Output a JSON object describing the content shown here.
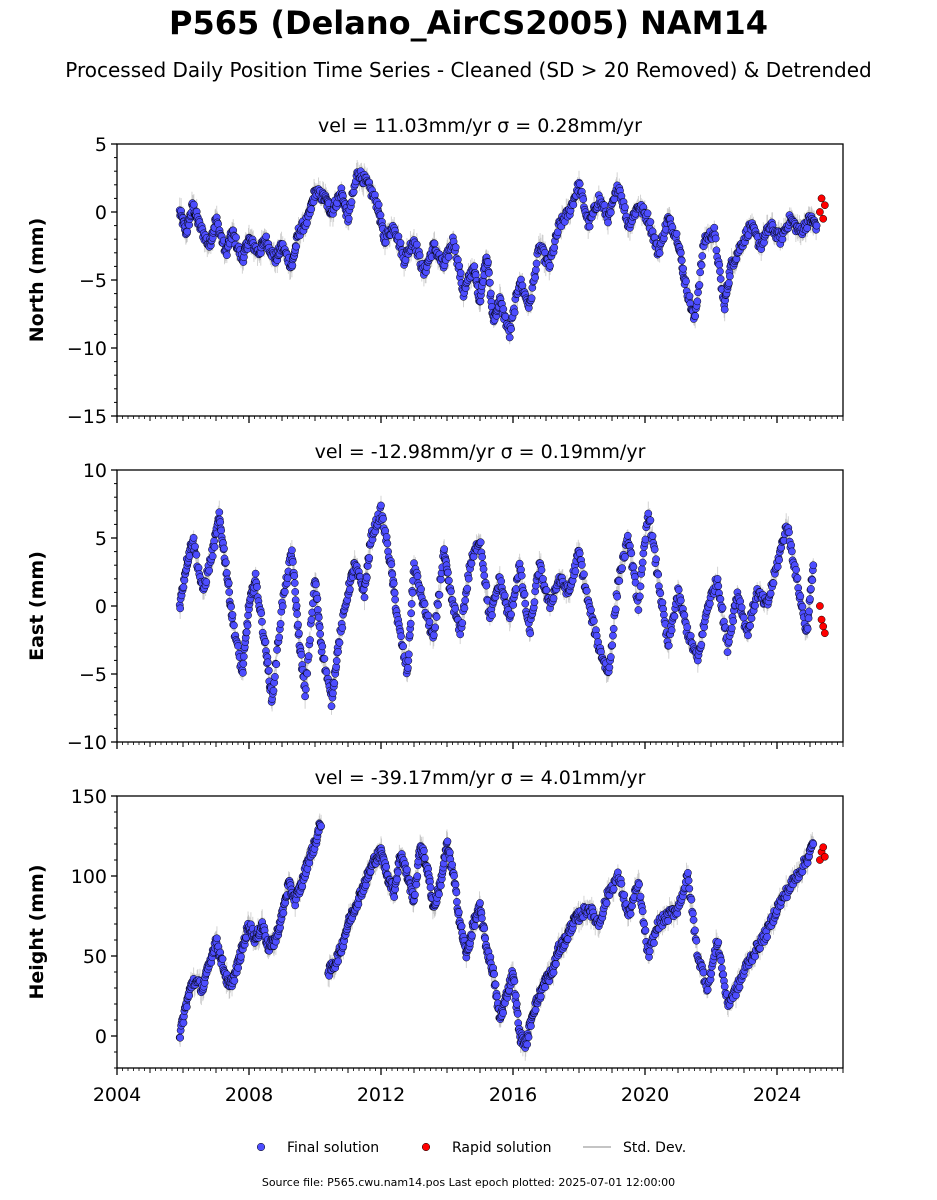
{
  "title": "P565 (Delano_AirCS2005) NAM14",
  "subtitle": "Processed Daily Position Time Series - Cleaned (SD > 20 Removed) & Detrended",
  "source_note": "Source file: P565.cwu.nam14.pos  Last epoch plotted: 2025-07-01 12:00:00",
  "colors": {
    "final": "#4d4dff",
    "rapid": "#ff0000",
    "marker_edge": "#000000",
    "std_dev": "#b0b0b0",
    "axes": "#000000"
  },
  "legend": {
    "placement": "bottom-center",
    "items": [
      {
        "label": "Final solution",
        "color": "#4d4dff",
        "kind": "marker"
      },
      {
        "label": "Rapid solution",
        "color": "#ff0000",
        "kind": "marker"
      },
      {
        "label": "Std. Dev.",
        "color": "#b0b0b0",
        "kind": "line"
      }
    ]
  },
  "chart_data": [
    {
      "type": "scatter",
      "title": "vel = 11.03mm/yr   σ = 0.28mm/yr",
      "ylabel": "North (mm)",
      "xlabel": "",
      "xlim": [
        2004,
        2026
      ],
      "ylim": [
        -15,
        5
      ],
      "yticks": [
        5,
        0,
        -5,
        -10,
        -15
      ],
      "ytick_labels": [
        "5",
        "0",
        "−5",
        "−10",
        "−15"
      ],
      "xticks": [
        2004,
        2008,
        2012,
        2016,
        2020,
        2024
      ],
      "show_xtick_labels": false,
      "grid": false,
      "series": [
        {
          "name": "Final solution",
          "x": [
            2005.9,
            2006.1,
            2006.3,
            2006.5,
            2006.8,
            2007.0,
            2007.3,
            2007.5,
            2007.8,
            2008.0,
            2008.3,
            2008.5,
            2008.8,
            2009.0,
            2009.3,
            2009.5,
            2009.8,
            2010.0,
            2010.3,
            2010.5,
            2010.8,
            2011.0,
            2011.3,
            2011.6,
            2011.9,
            2012.1,
            2012.4,
            2012.7,
            2013.0,
            2013.3,
            2013.6,
            2013.9,
            2014.2,
            2014.5,
            2014.8,
            2015.0,
            2015.2,
            2015.4,
            2015.6,
            2015.9,
            2016.2,
            2016.5,
            2016.8,
            2017.1,
            2017.4,
            2017.7,
            2018.0,
            2018.3,
            2018.6,
            2018.9,
            2019.2,
            2019.5,
            2019.8,
            2020.1,
            2020.4,
            2020.7,
            2021.0,
            2021.2,
            2021.5,
            2021.8,
            2022.1,
            2022.4,
            2022.6,
            2022.9,
            2023.2,
            2023.5,
            2023.8,
            2024.1,
            2024.4,
            2024.7,
            2025.0,
            2025.2
          ],
          "y": [
            0.0,
            -1.5,
            0.5,
            -1.0,
            -2.5,
            -0.5,
            -3.0,
            -1.5,
            -3.5,
            -2.0,
            -3.0,
            -2.0,
            -3.5,
            -2.5,
            -4.0,
            -1.5,
            -0.5,
            1.5,
            1.0,
            0.0,
            1.5,
            -0.5,
            3.0,
            2.0,
            0.5,
            -2.0,
            -1.0,
            -3.5,
            -2.0,
            -4.5,
            -2.5,
            -4.0,
            -2.0,
            -6.0,
            -4.0,
            -6.5,
            -3.0,
            -8.0,
            -6.5,
            -9.0,
            -5.0,
            -7.0,
            -2.5,
            -4.0,
            -1.0,
            0.0,
            2.0,
            -1.0,
            1.0,
            -0.5,
            2.0,
            -1.0,
            0.5,
            -0.5,
            -3.0,
            -0.5,
            -2.0,
            -5.0,
            -8.0,
            -2.0,
            -1.5,
            -7.0,
            -4.0,
            -2.5,
            -1.0,
            -2.5,
            -1.0,
            -2.0,
            -0.5,
            -1.5,
            -0.5,
            -1.0
          ]
        },
        {
          "name": "Rapid solution",
          "x": [
            2025.3,
            2025.35,
            2025.4,
            2025.45
          ],
          "y": [
            0.0,
            1.0,
            -0.5,
            0.5
          ]
        }
      ]
    },
    {
      "type": "scatter",
      "title": "vel = -12.98mm/yr   σ = 0.19mm/yr",
      "ylabel": "East (mm)",
      "xlabel": "",
      "xlim": [
        2004,
        2026
      ],
      "ylim": [
        -10,
        10
      ],
      "yticks": [
        10,
        5,
        0,
        -5,
        -10
      ],
      "ytick_labels": [
        "10",
        "5",
        "0",
        "−5",
        "−10"
      ],
      "xticks": [
        2004,
        2008,
        2012,
        2016,
        2020,
        2024
      ],
      "show_xtick_labels": false,
      "grid": false,
      "series": [
        {
          "name": "Final solution",
          "x": [
            2005.9,
            2006.1,
            2006.3,
            2006.6,
            2006.9,
            2007.1,
            2007.3,
            2007.5,
            2007.8,
            2008.0,
            2008.2,
            2008.5,
            2008.7,
            2009.0,
            2009.3,
            2009.5,
            2009.7,
            2010.0,
            2010.2,
            2010.5,
            2010.7,
            2011.0,
            2011.2,
            2011.5,
            2011.7,
            2012.0,
            2012.3,
            2012.5,
            2012.8,
            2013.0,
            2013.3,
            2013.6,
            2013.9,
            2014.1,
            2014.4,
            2014.7,
            2015.0,
            2015.3,
            2015.6,
            2015.9,
            2016.2,
            2016.5,
            2016.8,
            2017.1,
            2017.4,
            2017.7,
            2018.0,
            2018.3,
            2018.6,
            2018.9,
            2019.2,
            2019.5,
            2019.8,
            2020.1,
            2020.4,
            2020.7,
            2021.0,
            2021.3,
            2021.6,
            2021.9,
            2022.2,
            2022.5,
            2022.8,
            2023.1,
            2023.4,
            2023.7,
            2024.0,
            2024.3,
            2024.6,
            2024.9,
            2025.1
          ],
          "y": [
            0.0,
            3.0,
            5.0,
            1.0,
            4.0,
            6.5,
            3.0,
            -1.0,
            -5.0,
            0.0,
            2.0,
            -3.0,
            -7.0,
            0.0,
            4.0,
            -2.0,
            -6.5,
            2.0,
            -3.0,
            -7.0,
            -3.0,
            1.0,
            3.0,
            1.0,
            5.0,
            7.0,
            3.0,
            -1.0,
            -5.0,
            3.0,
            0.0,
            -2.5,
            4.0,
            1.0,
            -2.0,
            3.0,
            5.0,
            -1.0,
            2.0,
            -1.0,
            3.0,
            -2.0,
            3.0,
            0.0,
            2.0,
            1.0,
            4.0,
            0.0,
            -3.0,
            -5.0,
            2.0,
            5.0,
            0.0,
            7.0,
            2.0,
            -3.0,
            1.0,
            -2.0,
            -4.0,
            0.0,
            2.0,
            -3.0,
            1.0,
            -2.0,
            1.0,
            0.0,
            3.0,
            6.0,
            2.0,
            -2.0,
            3.0
          ]
        },
        {
          "name": "Rapid solution",
          "x": [
            2025.3,
            2025.35,
            2025.4,
            2025.45
          ],
          "y": [
            0.0,
            -1.0,
            -1.5,
            -2.0
          ]
        }
      ]
    },
    {
      "type": "scatter",
      "title": "vel = -39.17mm/yr   σ = 4.01mm/yr",
      "ylabel": "Height (mm)",
      "xlabel": "",
      "xlim": [
        2004,
        2026
      ],
      "ylim": [
        -20,
        150
      ],
      "yticks": [
        150,
        100,
        50,
        0
      ],
      "ytick_labels": [
        "150",
        "100",
        "50",
        "0"
      ],
      "xticks": [
        2004,
        2008,
        2012,
        2016,
        2020,
        2024
      ],
      "xtick_labels": [
        "2004",
        "2008",
        "2012",
        "2016",
        "2020",
        "2024"
      ],
      "show_xtick_labels": true,
      "grid": false,
      "series": [
        {
          "name": "Final solution",
          "x": [
            2005.9,
            2006.1,
            2006.3,
            2006.6,
            2006.8,
            2007.0,
            2007.2,
            2007.4,
            2007.6,
            2007.8,
            2008.0,
            2008.2,
            2008.4,
            2008.6,
            2008.8,
            2009.0,
            2009.2,
            2009.4,
            2009.6,
            2009.8,
            2010.0,
            2010.2,
            2010.4,
            2010.6,
            2010.8,
            2011.0,
            2011.2,
            2011.4,
            2011.6,
            2011.8,
            2012.0,
            2012.2,
            2012.4,
            2012.6,
            2012.8,
            2013.0,
            2013.2,
            2013.4,
            2013.6,
            2013.8,
            2014.0,
            2014.2,
            2014.4,
            2014.6,
            2014.8,
            2015.0,
            2015.2,
            2015.4,
            2015.6,
            2015.8,
            2016.0,
            2016.2,
            2016.4,
            2016.6,
            2016.8,
            2017.0,
            2017.2,
            2017.4,
            2017.6,
            2017.8,
            2018.0,
            2018.3,
            2018.6,
            2018.9,
            2019.2,
            2019.5,
            2019.8,
            2020.1,
            2020.4,
            2020.7,
            2021.0,
            2021.3,
            2021.6,
            2021.9,
            2022.2,
            2022.5,
            2022.8,
            2023.1,
            2023.4,
            2023.7,
            2024.0,
            2024.3,
            2024.6,
            2024.9,
            2025.1
          ],
          "y": [
            0.0,
            20.0,
            35.0,
            30.0,
            45.0,
            60.0,
            45.0,
            30.0,
            40.0,
            55.0,
            70.0,
            60.0,
            70.0,
            55.0,
            60.0,
            75.0,
            95.0,
            85.0,
            95.0,
            110.0,
            120.0,
            135.0,
            40.0,
            45.0,
            55.0,
            70.0,
            80.0,
            90.0,
            100.0,
            110.0,
            115.0,
            100.0,
            90.0,
            115.0,
            100.0,
            85.0,
            120.0,
            105.0,
            80.0,
            95.0,
            120.0,
            100.0,
            70.0,
            50.0,
            70.0,
            80.0,
            55.0,
            40.0,
            10.0,
            25.0,
            40.0,
            0.0,
            -5.0,
            15.0,
            25.0,
            35.0,
            40.0,
            55.0,
            60.0,
            70.0,
            75.0,
            80.0,
            70.0,
            90.0,
            100.0,
            75.0,
            95.0,
            50.0,
            70.0,
            75.0,
            80.0,
            100.0,
            50.0,
            30.0,
            60.0,
            20.0,
            30.0,
            45.0,
            55.0,
            65.0,
            80.0,
            90.0,
            100.0,
            110.0,
            120.0
          ]
        },
        {
          "name": "Rapid solution",
          "x": [
            2025.3,
            2025.35,
            2025.4,
            2025.45
          ],
          "y": [
            110.0,
            115.0,
            118.0,
            112.0
          ]
        }
      ]
    }
  ]
}
